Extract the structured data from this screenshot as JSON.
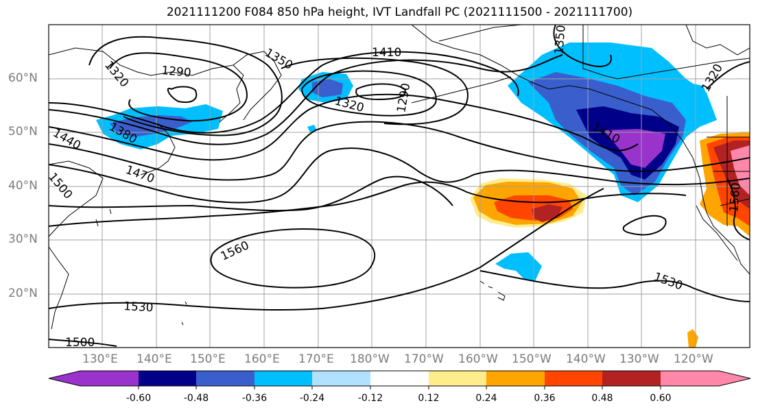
{
  "title": "2021111200 F084 850 hPa height, IVT Landfall PC (2021111500 - 2021111700)",
  "map": {
    "latitude_labels": [
      "60°N",
      "50°N",
      "40°N",
      "30°N",
      "20°N"
    ],
    "longitude_labels": [
      "130°E",
      "140°E",
      "150°E",
      "160°E",
      "170°E",
      "180°W",
      "170°W",
      "160°W",
      "150°W",
      "140°W",
      "130°W",
      "120°W"
    ],
    "contour_labels": [
      "1290",
      "1320",
      "1350",
      "1410",
      "1320",
      "1290",
      "1380",
      "1440",
      "1470",
      "1500",
      "1560",
      "1530",
      "1500",
      "1530",
      "1350",
      "1410",
      "1320",
      "1560"
    ],
    "land_color": "#000000",
    "contour_color": "#000000",
    "grid_color": "#a0a0a0"
  },
  "colorbar": {
    "tick_labels": [
      "-0.60",
      "-0.48",
      "-0.36",
      "-0.24",
      "-0.12",
      "0.12",
      "0.24",
      "0.36",
      "0.48",
      "0.60"
    ],
    "colors": [
      "#9933cc",
      "#000088",
      "#3a5fcd",
      "#00bfff",
      "#b0e2ff",
      "#ffffff",
      "#ffec8b",
      "#ffa500",
      "#ff4500",
      "#b22222",
      "#ff88aa"
    ]
  }
}
